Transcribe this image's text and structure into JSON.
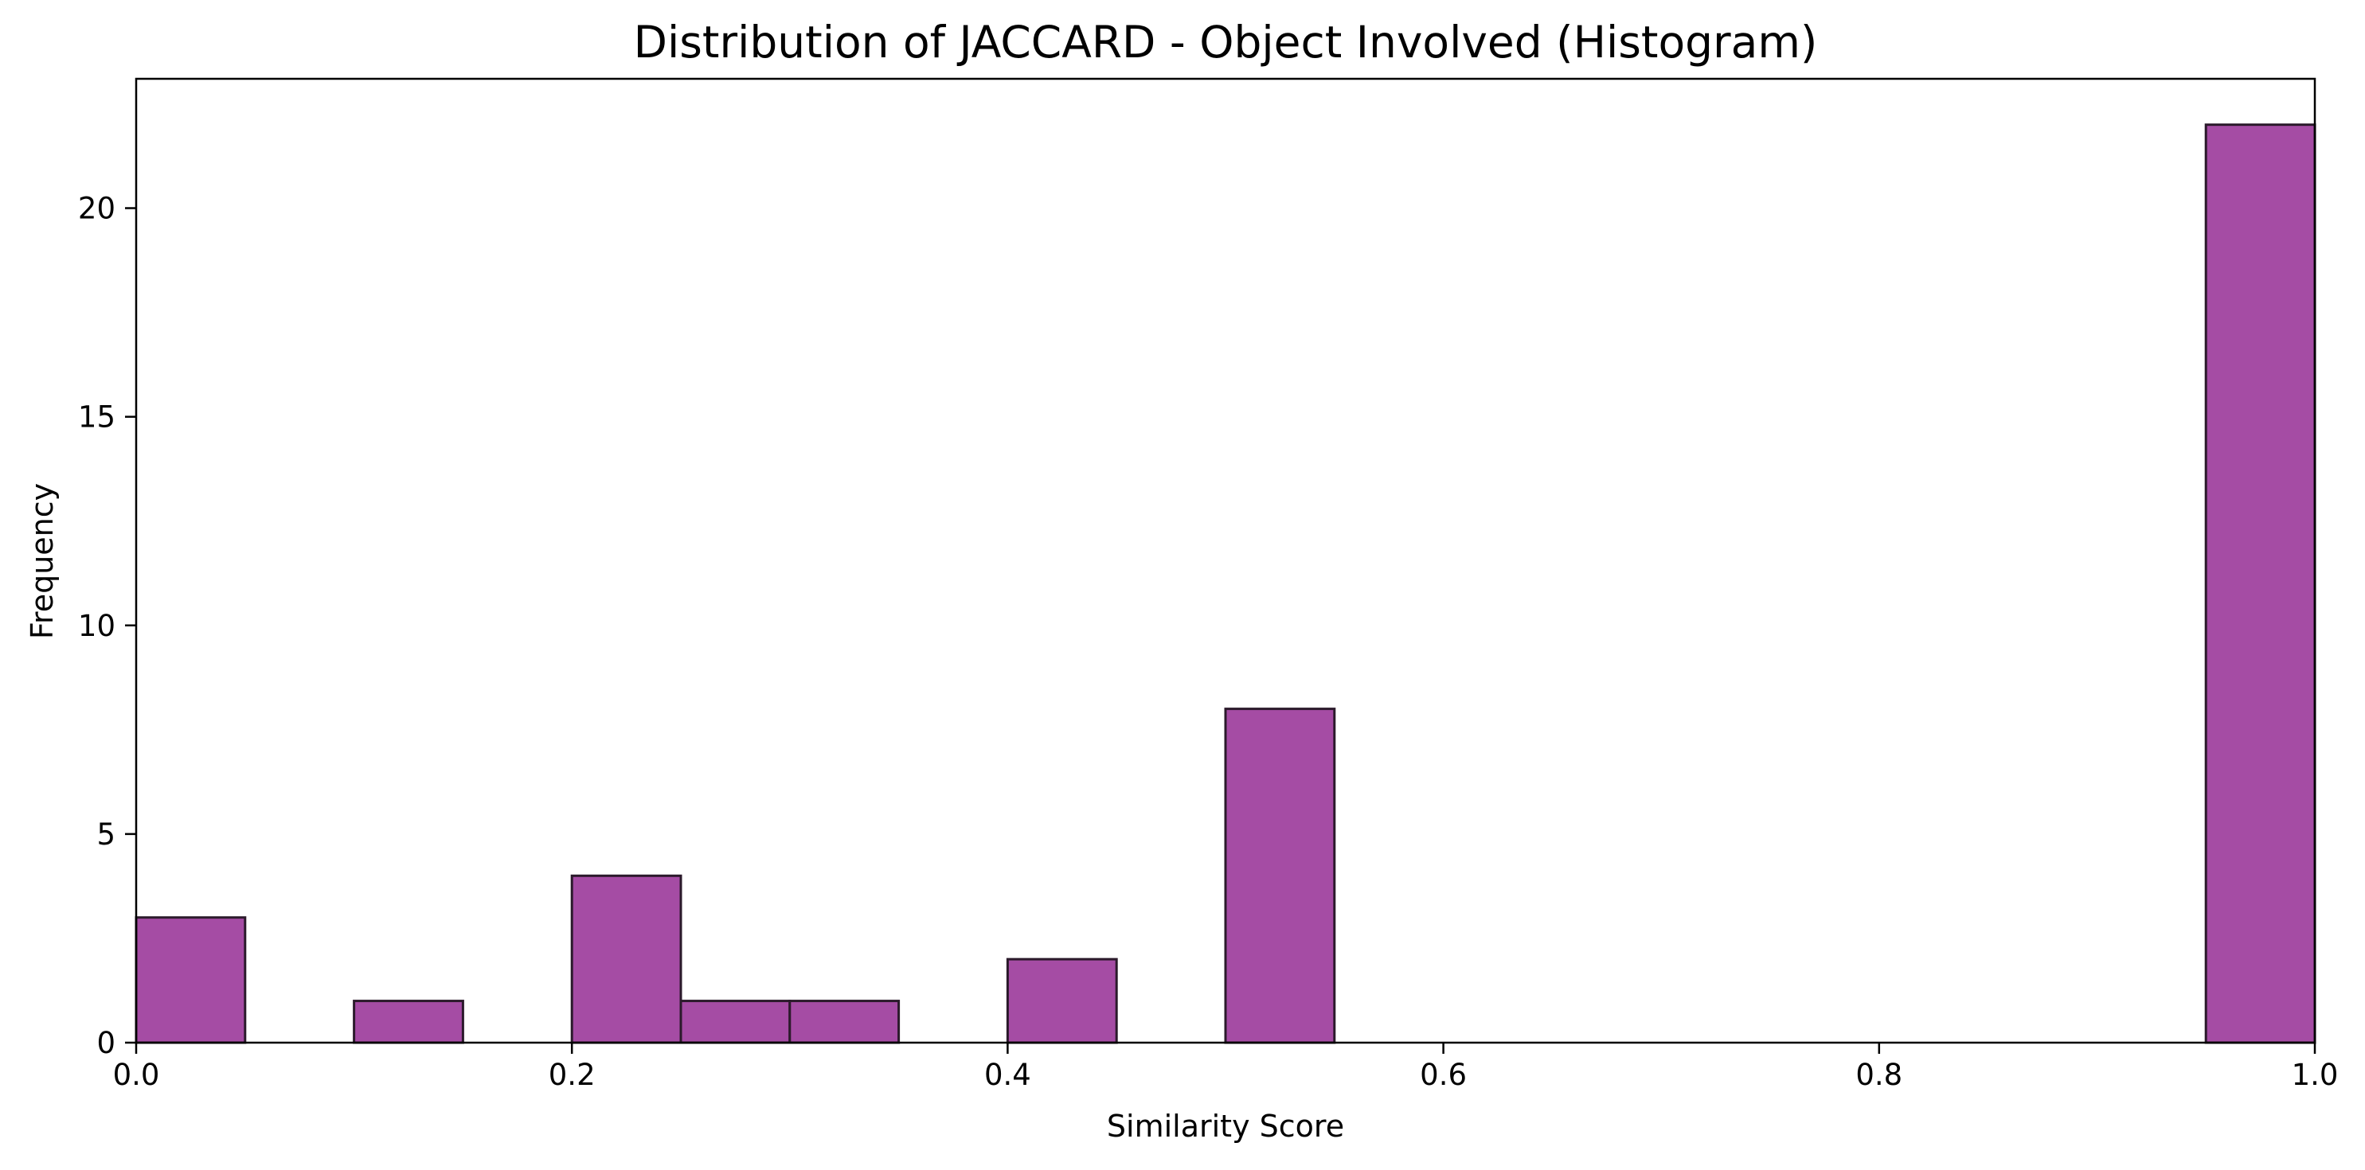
{
  "chart_data": {
    "type": "bar",
    "subtype": "histogram",
    "title": "Distribution of JACCARD - Object Involved (Histogram)",
    "xlabel": "Similarity Score",
    "ylabel": "Frequency",
    "xlim": [
      0.0,
      1.0
    ],
    "ylim": [
      0,
      23.1
    ],
    "x_ticks": [
      0.0,
      0.2,
      0.4,
      0.6,
      0.8,
      1.0
    ],
    "x_tick_labels": [
      "0.0",
      "0.2",
      "0.4",
      "0.6",
      "0.8",
      "1.0"
    ],
    "y_ticks": [
      0,
      5,
      10,
      15,
      20
    ],
    "y_tick_labels": [
      "0",
      "5",
      "10",
      "15",
      "20"
    ],
    "bin_width": 0.05,
    "bins": [
      {
        "start": 0.0,
        "end": 0.05,
        "count": 3
      },
      {
        "start": 0.1,
        "end": 0.15,
        "count": 1
      },
      {
        "start": 0.2,
        "end": 0.25,
        "count": 4
      },
      {
        "start": 0.25,
        "end": 0.3,
        "count": 1
      },
      {
        "start": 0.3,
        "end": 0.35,
        "count": 1
      },
      {
        "start": 0.4,
        "end": 0.45,
        "count": 2
      },
      {
        "start": 0.5,
        "end": 0.55,
        "count": 8
      },
      {
        "start": 0.95,
        "end": 1.0,
        "count": 22
      }
    ],
    "bar_color": "#a54ca4",
    "bar_edge_color": "#2b1a2b",
    "grid": false,
    "legend": false
  }
}
